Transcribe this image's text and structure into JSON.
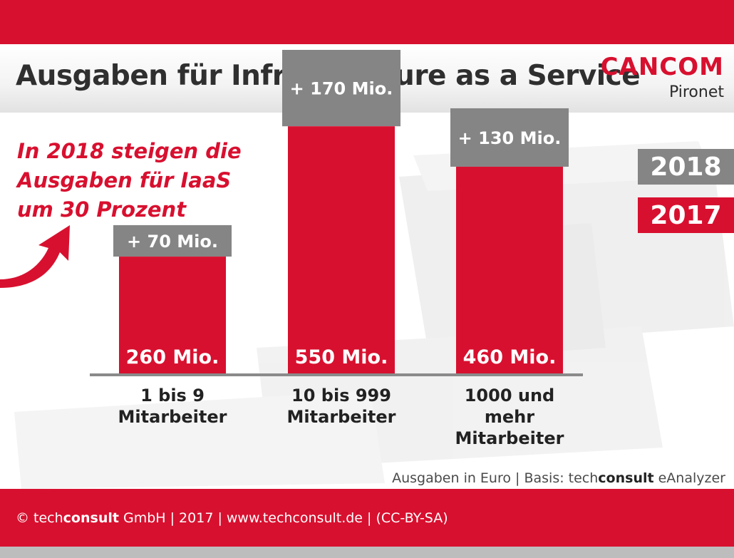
{
  "header": {
    "title": "Ausgaben für Infrastructure as a Service",
    "logo_main": "CANCOM",
    "logo_sub": "Pironet"
  },
  "callout": {
    "lines": [
      "In 2018 steigen die",
      "Ausgaben für IaaS",
      "um 30 Prozent"
    ]
  },
  "legend": {
    "items": [
      {
        "label": "2018",
        "color": "#858585"
      },
      {
        "label": "2017",
        "color": "#d8102f"
      }
    ]
  },
  "chart_data": {
    "type": "bar",
    "stacked": true,
    "title": "Ausgaben für Infrastructure as a Service",
    "ylabel": "",
    "xlabel": "",
    "unit": "Mio.",
    "categories": [
      [
        "1 bis 9",
        "Mitarbeiter"
      ],
      [
        "10 bis 999",
        "Mitarbeiter"
      ],
      [
        "1000 und mehr",
        "Mitarbeiter"
      ]
    ],
    "series": [
      {
        "name": "2017",
        "color": "#d8102f",
        "values": [
          260,
          550,
          460
        ],
        "labels": [
          "260 Mio.",
          "550 Mio.",
          "460 Mio."
        ]
      },
      {
        "name": "2018",
        "color": "#858585",
        "values": [
          70,
          170,
          130
        ],
        "labels": [
          "+ 70 Mio.",
          "+ 170 Mio.",
          "+ 130 Mio."
        ]
      }
    ],
    "ylim": [
      0,
      720
    ],
    "grid": false,
    "legend_position": "top-right"
  },
  "source": {
    "prefix": "Ausgaben in Euro | Basis: tech",
    "brand_bold": "consult",
    "suffix": " eAnalyzer"
  },
  "footer": {
    "prefix": "© tech",
    "brand_bold": "consult",
    "suffix": " GmbH | 2017 | www.techconsult.de | (CC-BY-SA)"
  },
  "colors": {
    "accent": "#d8102f",
    "grey": "#858585"
  }
}
